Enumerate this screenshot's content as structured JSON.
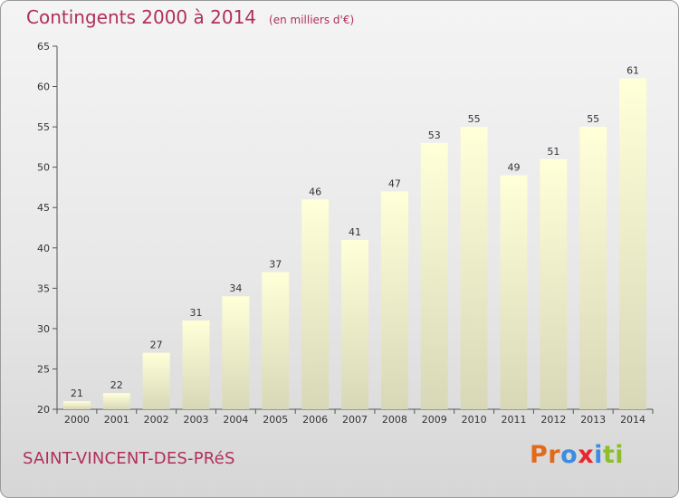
{
  "header": {
    "title": "Contingents 2000 à 2014",
    "unit": "(en milliers d'€)"
  },
  "footer": {
    "place": "SAINT-VINCENT-DES-PRéS",
    "logo": [
      "P",
      "r",
      "o",
      "x",
      "i",
      "t",
      "i"
    ]
  },
  "colors": {
    "title": "#b0305a",
    "bar_top": "#ffffd8",
    "bar_bottom": "#d8d8b8",
    "logo": [
      "#e46a1a",
      "#e46a1a",
      "#3c8de0",
      "#e8262f",
      "#3c8de0",
      "#8cbf2a",
      "#8cbf2a"
    ]
  },
  "chart_data": {
    "type": "bar",
    "categories": [
      "2000",
      "2001",
      "2002",
      "2003",
      "2004",
      "2005",
      "2006",
      "2007",
      "2008",
      "2009",
      "2010",
      "2011",
      "2012",
      "2013",
      "2014"
    ],
    "values": [
      21,
      22,
      27,
      31,
      34,
      37,
      46,
      41,
      47,
      53,
      55,
      49,
      51,
      55,
      61
    ],
    "ylim": [
      20,
      65
    ],
    "yticks": [
      20,
      25,
      30,
      35,
      40,
      45,
      50,
      55,
      60,
      65
    ],
    "grid": false,
    "data_labels": true
  }
}
